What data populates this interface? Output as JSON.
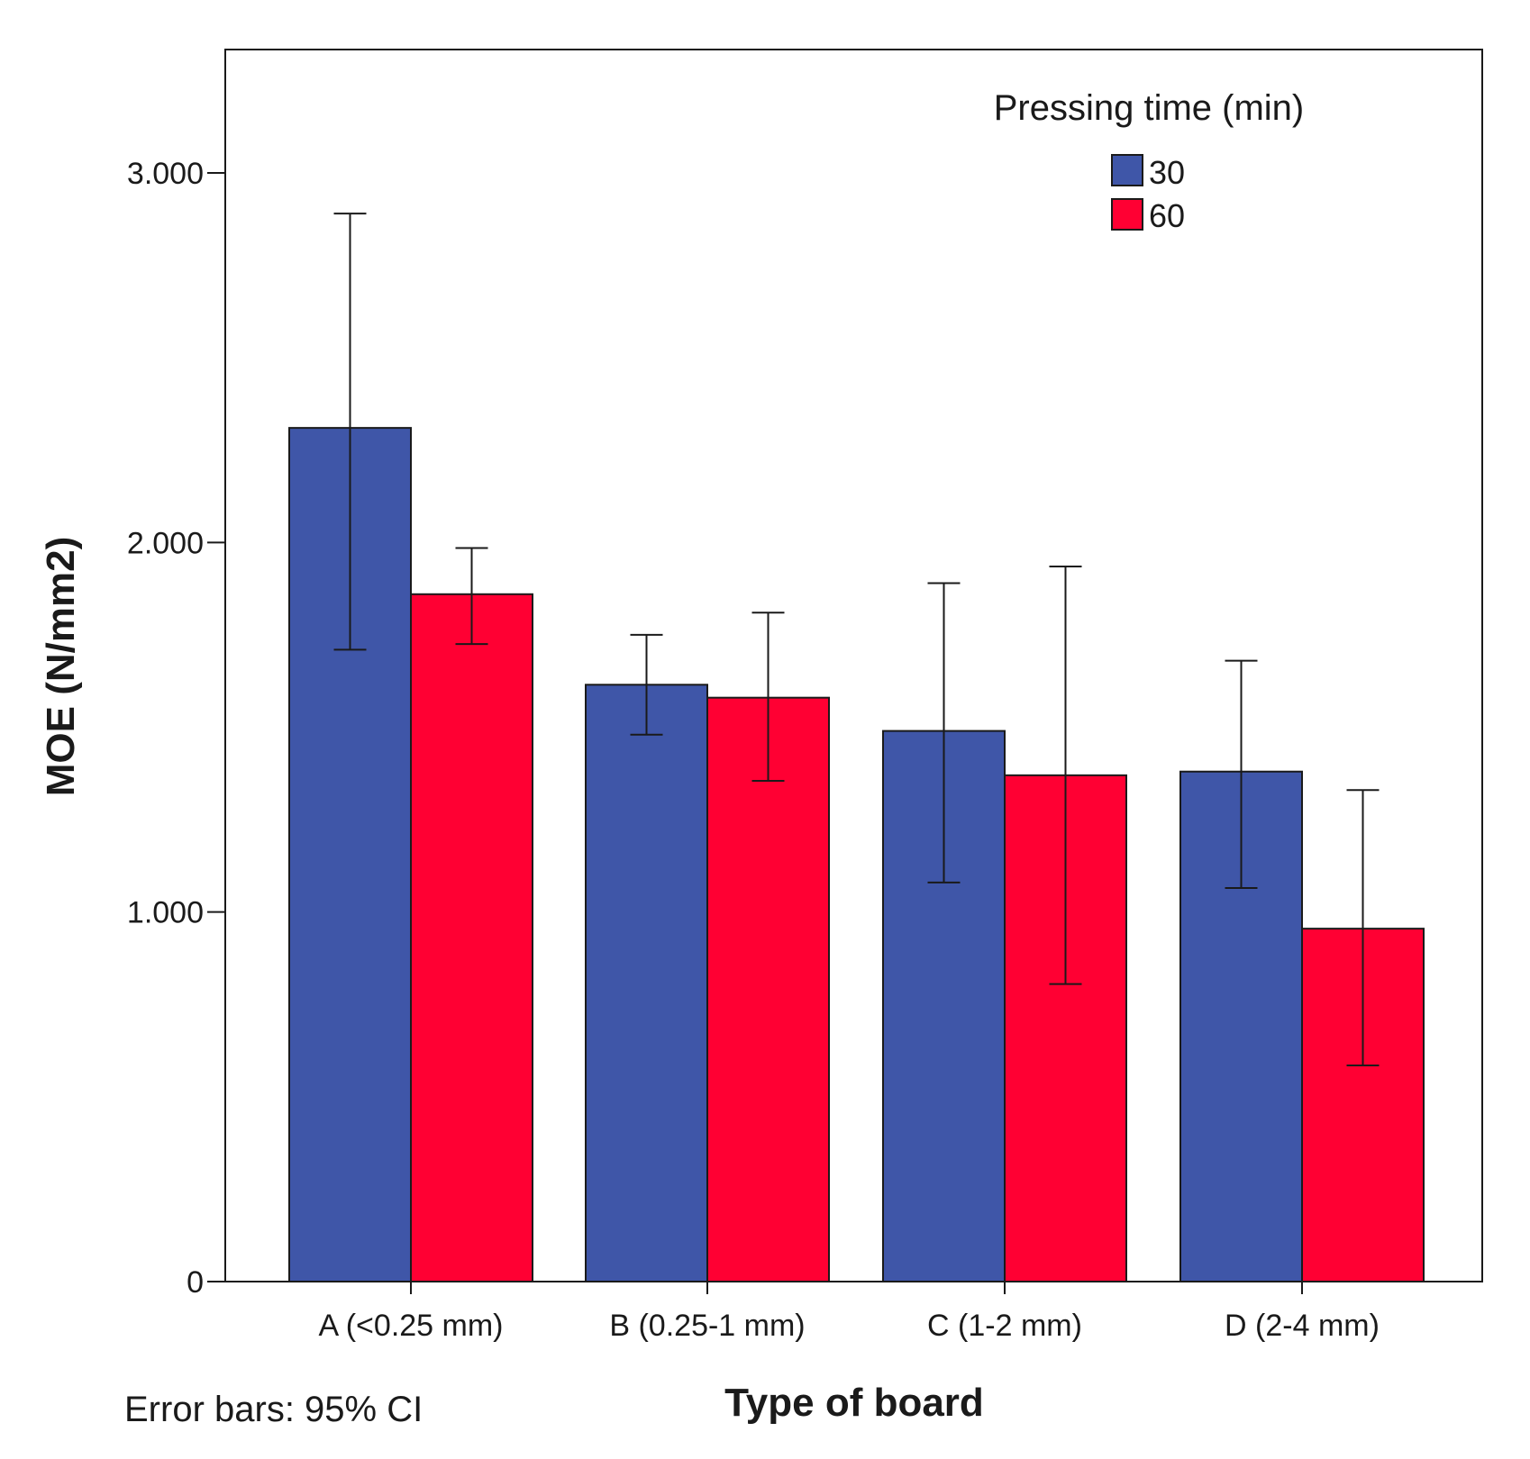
{
  "chart_data": {
    "type": "bar",
    "title": "",
    "xlabel": "Type of board",
    "ylabel": "MOE (N/mm2)",
    "ylim": [
      0,
      3300
    ],
    "yticks": [
      0,
      1000,
      2000,
      3000
    ],
    "ytick_labels": [
      "0",
      "1.000",
      "2.000",
      "3.000"
    ],
    "grid": false,
    "legend": {
      "title": "Pressing time (min)",
      "position": "top-right"
    },
    "categories": [
      "A (<0.25 mm)",
      "B (0.25-1 mm)",
      "C (1-2 mm)",
      "D (2-4 mm)"
    ],
    "series": [
      {
        "name": "30",
        "color": "#3f56a8",
        "values": [
          2310,
          1615,
          1490,
          1380
        ],
        "ci_low": [
          1710,
          1480,
          1080,
          1065
        ],
        "ci_high": [
          2890,
          1750,
          1890,
          1680
        ]
      },
      {
        "name": "60",
        "color": "#ff0033",
        "values": [
          1860,
          1580,
          1370,
          955
        ],
        "ci_low": [
          1725,
          1355,
          805,
          585
        ],
        "ci_high": [
          1985,
          1810,
          1935,
          1330
        ]
      }
    ],
    "footnote": "Error bars: 95% CI"
  }
}
